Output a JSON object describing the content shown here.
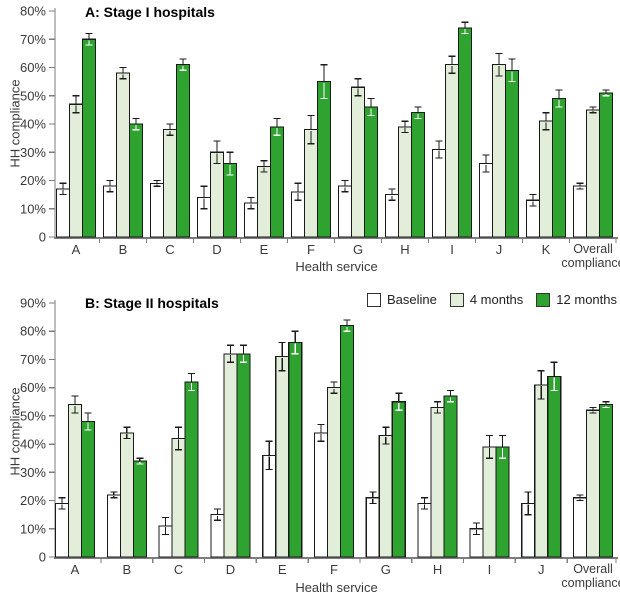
{
  "colors": {
    "axis": "#7d7d7d",
    "text": "#3a3a3a",
    "title": "#000000",
    "bar_outline": "#1a1a1a",
    "error_bar": "#1a1a1a",
    "baseline_fill": "#ffffff",
    "four_months_fill": "#e2eeda",
    "twelve_months_fill": "#2ea32f"
  },
  "legend": {
    "items": [
      {
        "label": "Baseline",
        "color": "#ffffff"
      },
      {
        "label": "4 months",
        "color": "#e2eeda"
      },
      {
        "label": "12 months",
        "color": "#2ea32f"
      }
    ]
  },
  "chart_data": [
    {
      "type": "bar",
      "title": "A: Stage I hospitals",
      "xlabel": "Health service",
      "ylabel": "HH compliance",
      "ylim": [
        0,
        80
      ],
      "ytick_step": 10,
      "grid": false,
      "show_legend": false,
      "categories": [
        "A",
        "B",
        "C",
        "D",
        "E",
        "F",
        "G",
        "H",
        "I",
        "J",
        "K",
        "Overall compliance"
      ],
      "series": [
        {
          "name": "Baseline",
          "color": "#ffffff",
          "error_inside_color": "#1a1a1a",
          "values": [
            17,
            18,
            19,
            14,
            12,
            16,
            18,
            15,
            31,
            26,
            13,
            18
          ],
          "errors": [
            2,
            2,
            1,
            4,
            2,
            3,
            2,
            2,
            3,
            3,
            2,
            1
          ]
        },
        {
          "name": "4 months",
          "color": "#e2eeda",
          "error_inside_color": "#1a1a1a",
          "values": [
            47,
            58,
            38,
            30,
            25,
            38,
            53,
            39,
            61,
            61,
            41,
            45
          ],
          "errors": [
            3,
            2,
            2,
            4,
            2,
            5,
            3,
            2,
            3,
            4,
            3,
            1
          ]
        },
        {
          "name": "12 months",
          "color": "#2ea32f",
          "error_inside_color": "#ffffff",
          "values": [
            70,
            40,
            61,
            26,
            39,
            55,
            46,
            44,
            74,
            59,
            49,
            51
          ],
          "errors": [
            2,
            2,
            2,
            4,
            3,
            6,
            3,
            2,
            2,
            4,
            3,
            1
          ]
        }
      ]
    },
    {
      "type": "bar",
      "title": "B: Stage II hospitals",
      "xlabel": "Health service",
      "ylabel": "HH compliance",
      "ylim": [
        0,
        90
      ],
      "ytick_step": 10,
      "grid": false,
      "show_legend": true,
      "legend_position": "top-right",
      "categories": [
        "A",
        "B",
        "C",
        "D",
        "E",
        "F",
        "G",
        "H",
        "I",
        "J",
        "Overall compliance"
      ],
      "series": [
        {
          "name": "Baseline",
          "color": "#ffffff",
          "error_inside_color": "#1a1a1a",
          "values": [
            19,
            22,
            11,
            15,
            36,
            44,
            21,
            19,
            10,
            19,
            21
          ],
          "errors": [
            2,
            1,
            3,
            2,
            5,
            3,
            2,
            2,
            2,
            4,
            1
          ]
        },
        {
          "name": "4 months",
          "color": "#e2eeda",
          "error_inside_color": "#1a1a1a",
          "values": [
            54,
            44,
            42,
            72,
            71,
            60,
            43,
            53,
            39,
            61,
            52
          ],
          "errors": [
            3,
            2,
            4,
            3,
            5,
            2,
            3,
            2,
            4,
            5,
            1
          ]
        },
        {
          "name": "12 months",
          "color": "#2ea32f",
          "error_inside_color": "#ffffff",
          "values": [
            48,
            34,
            62,
            72,
            76,
            82,
            55,
            57,
            39,
            64,
            54
          ],
          "errors": [
            3,
            1,
            3,
            3,
            4,
            2,
            3,
            2,
            4,
            5,
            1
          ]
        }
      ]
    }
  ]
}
